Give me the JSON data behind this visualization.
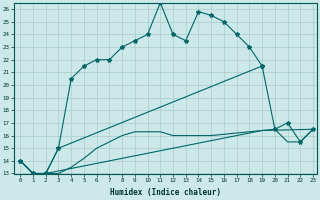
{
  "xlabel": "Humidex (Indice chaleur)",
  "bg_color": "#cce8e8",
  "grid_color": "#aacccc",
  "line_color": "#006666",
  "xlim": [
    -0.5,
    23.3
  ],
  "ylim": [
    13,
    26.5
  ],
  "yticks": [
    13,
    14,
    15,
    16,
    17,
    18,
    19,
    20,
    21,
    22,
    23,
    24,
    25,
    26
  ],
  "xticks": [
    0,
    1,
    2,
    3,
    4,
    5,
    6,
    7,
    8,
    9,
    10,
    11,
    12,
    13,
    14,
    15,
    16,
    17,
    18,
    19,
    20,
    21,
    22,
    23
  ],
  "curve1_x": [
    0,
    1,
    2,
    3,
    4,
    5,
    6,
    7,
    8,
    9,
    10,
    11,
    12,
    13,
    14,
    15,
    16,
    17,
    18,
    19
  ],
  "curve1_y": [
    14,
    13,
    13,
    15,
    20.5,
    21.5,
    22,
    22,
    23,
    23.5,
    24,
    26.5,
    24,
    23.5,
    25.8,
    25.5,
    25,
    24,
    23,
    21.5
  ],
  "curve2_x": [
    0,
    1,
    2,
    3,
    19,
    20,
    21,
    22,
    23
  ],
  "curve2_y": [
    14,
    13,
    13,
    15,
    21.5,
    16.5,
    17,
    15.5,
    16.5
  ],
  "curve3_x": [
    0,
    1,
    2,
    3,
    4,
    5,
    6,
    7,
    8,
    9,
    10,
    11,
    12,
    13,
    14,
    15,
    16,
    17,
    18,
    19,
    20,
    21,
    22,
    23
  ],
  "curve3_y": [
    14,
    13,
    13,
    13,
    13.5,
    14.2,
    15,
    15.5,
    16,
    16.3,
    16.3,
    16.3,
    16.0,
    16.0,
    16.0,
    16.0,
    16.1,
    16.2,
    16.3,
    16.4,
    16.5,
    15.5,
    15.5,
    16.5
  ],
  "curve4_x": [
    0,
    1,
    2,
    19,
    23
  ],
  "curve4_y": [
    14,
    13,
    13,
    16.4,
    16.5
  ]
}
